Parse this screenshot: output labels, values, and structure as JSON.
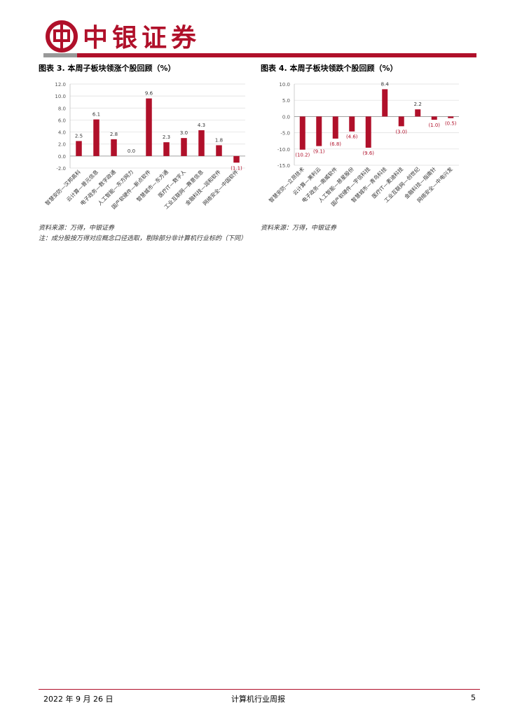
{
  "header": {
    "brand": "中银证券"
  },
  "chart_data": [
    {
      "type": "bar",
      "title": "图表 3. 本周子板块领涨个股回顾（%）",
      "categories": [
        "智慧安防—汉邦高科",
        "云计算—普元信息",
        "电子政务—数字政通",
        "人工智能—东方网力",
        "国产软硬件—新点软件",
        "智慧城市—东方通",
        "医疗IT—数字人",
        "工业互联网—赛意信息",
        "金融科技—润和软件",
        "网络安全—中国软件"
      ],
      "values": [
        2.5,
        6.1,
        2.8,
        0.0,
        9.6,
        2.3,
        3.0,
        4.3,
        1.8,
        -1.1
      ],
      "value_labels": [
        "2.5",
        "6.1",
        "2.8",
        "0.0",
        "9.6",
        "2.3",
        "3.0",
        "4.3",
        "1.8",
        "(1.1)"
      ],
      "color": "#b0102a",
      "ylim": [
        -2,
        12
      ],
      "yticks": [
        {
          "value": -2,
          "label": "-2.0"
        },
        {
          "value": 0,
          "label": "0.0"
        },
        {
          "value": 2,
          "label": "2.0"
        },
        {
          "value": 4,
          "label": "4.0"
        },
        {
          "value": 6,
          "label": "6.0"
        },
        {
          "value": 8,
          "label": "8.0"
        },
        {
          "value": 10,
          "label": "10.0"
        },
        {
          "value": 12,
          "label": "12.0"
        }
      ],
      "grid": true
    },
    {
      "type": "bar",
      "title": "图表 4. 本周子板块领跌个股回顾（%）",
      "categories": [
        "智慧安防—立昂技术",
        "云计算—美利云",
        "电子政务—南威软件",
        "人工智能—慈星股份",
        "国产软硬件—宇信科技",
        "智慧城市—青鸟科技",
        "医疗IT—麦迪科技",
        "工业互联网—创世纪",
        "金融科技—指南针",
        "网络安全—中电兴发"
      ],
      "values": [
        -10.2,
        -9.1,
        -6.8,
        -4.6,
        -9.6,
        8.4,
        -3.0,
        2.2,
        -1.0,
        -0.5
      ],
      "value_labels": [
        "(10.2)",
        "(9.1)",
        "(6.8)",
        "(4.6)",
        "(9.6)",
        "8.4",
        "(3.0)",
        "2.2",
        "(1.0)",
        "(0.5)"
      ],
      "color": "#b0102a",
      "ylim": [
        -15,
        10
      ],
      "yticks": [
        {
          "value": -15,
          "label": "-15.0"
        },
        {
          "value": -10,
          "label": "-10.0"
        },
        {
          "value": -5,
          "label": "-5.0"
        },
        {
          "value": 0,
          "label": "0.0"
        },
        {
          "value": 5,
          "label": "5.0"
        },
        {
          "value": 10,
          "label": "10.0"
        }
      ],
      "grid": true
    }
  ],
  "notes": {
    "left_source": "资料来源：万得，中银证券",
    "left_note": "注：成分股按万得对应概念口径选取，剔除部分非计算机行业标的（下同）",
    "right_source": "资料来源：万得，中银证券"
  },
  "footer": {
    "date": "2022 年 9 月 26 日",
    "report": "计算机行业周报",
    "page": "5"
  }
}
